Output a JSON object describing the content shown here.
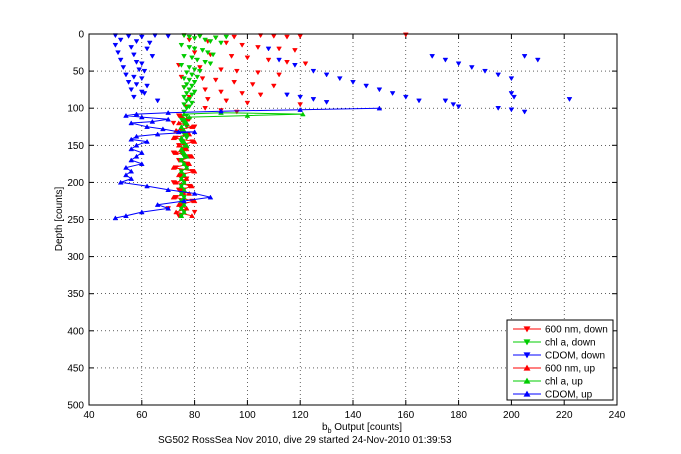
{
  "chart_data": {
    "type": "scatter",
    "xlabel_main": "b",
    "xlabel_sub": "b",
    "xlabel_rest": " Output [counts]",
    "ylabel": "Depth [counts]",
    "caption": "SG502 RossSea Nov 2010, dive 29 started 24-Nov-2010 01:39:53",
    "xlim": [
      40,
      240
    ],
    "ylim": [
      0,
      500
    ],
    "y_reversed": true,
    "grid": true,
    "legend_position": "bottom-right",
    "xticks": [
      40,
      60,
      80,
      100,
      120,
      140,
      160,
      180,
      200,
      220,
      240
    ],
    "yticks": [
      0,
      50,
      100,
      150,
      200,
      250,
      300,
      350,
      400,
      450,
      500
    ],
    "series": [
      {
        "name": "600 nm, down",
        "color": "#ff0000",
        "marker": "triangle-down",
        "line": false,
        "points": [
          [
            76,
            2
          ],
          [
            82,
            3
          ],
          [
            88,
            5
          ],
          [
            95,
            4
          ],
          [
            105,
            2
          ],
          [
            110,
            3
          ],
          [
            115,
            4
          ],
          [
            120,
            3
          ],
          [
            160,
            1
          ],
          [
            78,
            8
          ],
          [
            85,
            10
          ],
          [
            92,
            12
          ],
          [
            98,
            15
          ],
          [
            104,
            18
          ],
          [
            112,
            20
          ],
          [
            118,
            22
          ],
          [
            80,
            25
          ],
          [
            86,
            28
          ],
          [
            94,
            30
          ],
          [
            100,
            32
          ],
          [
            108,
            35
          ],
          [
            115,
            38
          ],
          [
            122,
            40
          ],
          [
            74,
            42
          ],
          [
            82,
            45
          ],
          [
            90,
            48
          ],
          [
            96,
            50
          ],
          [
            104,
            52
          ],
          [
            112,
            55
          ],
          [
            75,
            58
          ],
          [
            83,
            60
          ],
          [
            88,
            62
          ],
          [
            95,
            65
          ],
          [
            102,
            68
          ],
          [
            110,
            70
          ],
          [
            76,
            72
          ],
          [
            84,
            75
          ],
          [
            90,
            78
          ],
          [
            98,
            80
          ],
          [
            105,
            82
          ],
          [
            78,
            85
          ],
          [
            85,
            88
          ],
          [
            92,
            90
          ],
          [
            100,
            93
          ],
          [
            120,
            95
          ],
          [
            77,
            98
          ],
          [
            84,
            100
          ],
          [
            90,
            103
          ],
          [
            96,
            105
          ],
          [
            74,
            110
          ],
          [
            78,
            115
          ],
          [
            72,
            120
          ],
          [
            80,
            125
          ],
          [
            75,
            130
          ],
          [
            77,
            135
          ],
          [
            73,
            140
          ],
          [
            79,
            145
          ],
          [
            74,
            150
          ],
          [
            76,
            155
          ],
          [
            72,
            160
          ],
          [
            78,
            165
          ],
          [
            74,
            170
          ],
          [
            77,
            175
          ],
          [
            73,
            180
          ],
          [
            79,
            185
          ],
          [
            75,
            190
          ],
          [
            77,
            195
          ],
          [
            72,
            200
          ],
          [
            78,
            205
          ],
          [
            74,
            210
          ],
          [
            76,
            215
          ],
          [
            73,
            220
          ],
          [
            79,
            225
          ],
          [
            75,
            230
          ],
          [
            70,
            235
          ],
          [
            80,
            240
          ],
          [
            74,
            245
          ]
        ]
      },
      {
        "name": "chl a, down",
        "color": "#00cc00",
        "marker": "triangle-down",
        "line": false,
        "points": [
          [
            76,
            2
          ],
          [
            78,
            4
          ],
          [
            80,
            6
          ],
          [
            82,
            3
          ],
          [
            84,
            8
          ],
          [
            86,
            10
          ],
          [
            88,
            5
          ],
          [
            90,
            12
          ],
          [
            92,
            4
          ],
          [
            75,
            15
          ],
          [
            78,
            18
          ],
          [
            80,
            20
          ],
          [
            83,
            22
          ],
          [
            85,
            25
          ],
          [
            87,
            28
          ],
          [
            76,
            30
          ],
          [
            79,
            32
          ],
          [
            81,
            35
          ],
          [
            84,
            38
          ],
          [
            86,
            40
          ],
          [
            75,
            42
          ],
          [
            78,
            45
          ],
          [
            80,
            48
          ],
          [
            82,
            50
          ],
          [
            77,
            52
          ],
          [
            79,
            55
          ],
          [
            81,
            58
          ],
          [
            76,
            60
          ],
          [
            78,
            62
          ],
          [
            80,
            65
          ],
          [
            77,
            68
          ],
          [
            79,
            70
          ],
          [
            76,
            72
          ],
          [
            78,
            75
          ],
          [
            80,
            78
          ],
          [
            77,
            80
          ],
          [
            79,
            82
          ],
          [
            76,
            85
          ],
          [
            78,
            88
          ],
          [
            77,
            90
          ],
          [
            79,
            93
          ],
          [
            76,
            95
          ],
          [
            78,
            98
          ],
          [
            77,
            100
          ],
          [
            76,
            105
          ],
          [
            77,
            110
          ],
          [
            75,
            115
          ],
          [
            76,
            120
          ],
          [
            77,
            125
          ],
          [
            75,
            130
          ],
          [
            76,
            135
          ],
          [
            77,
            140
          ],
          [
            75,
            145
          ],
          [
            76,
            150
          ],
          [
            77,
            155
          ],
          [
            75,
            160
          ],
          [
            76,
            165
          ],
          [
            75,
            170
          ],
          [
            76,
            175
          ],
          [
            77,
            180
          ],
          [
            75,
            185
          ],
          [
            76,
            190
          ],
          [
            75,
            195
          ],
          [
            76,
            200
          ],
          [
            75,
            205
          ],
          [
            76,
            210
          ],
          [
            75,
            215
          ],
          [
            76,
            220
          ],
          [
            75,
            225
          ],
          [
            76,
            230
          ],
          [
            75,
            235
          ],
          [
            76,
            240
          ],
          [
            75,
            245
          ]
        ]
      },
      {
        "name": "CDOM, down",
        "color": "#0000ff",
        "marker": "triangle-down",
        "line": false,
        "points": [
          [
            50,
            2
          ],
          [
            55,
            3
          ],
          [
            60,
            4
          ],
          [
            65,
            2
          ],
          [
            70,
            3
          ],
          [
            52,
            8
          ],
          [
            58,
            10
          ],
          [
            63,
            12
          ],
          [
            50,
            15
          ],
          [
            56,
            18
          ],
          [
            62,
            20
          ],
          [
            51,
            25
          ],
          [
            57,
            28
          ],
          [
            64,
            30
          ],
          [
            52,
            35
          ],
          [
            58,
            38
          ],
          [
            60,
            40
          ],
          [
            53,
            45
          ],
          [
            59,
            48
          ],
          [
            61,
            50
          ],
          [
            54,
            55
          ],
          [
            57,
            58
          ],
          [
            60,
            60
          ],
          [
            55,
            65
          ],
          [
            58,
            68
          ],
          [
            62,
            70
          ],
          [
            56,
            75
          ],
          [
            60,
            78
          ],
          [
            61,
            80
          ],
          [
            57,
            85
          ],
          [
            66,
            90
          ],
          [
            108,
            20
          ],
          [
            112,
            35
          ],
          [
            118,
            42
          ],
          [
            125,
            50
          ],
          [
            130,
            55
          ],
          [
            135,
            60
          ],
          [
            140,
            65
          ],
          [
            145,
            70
          ],
          [
            150,
            75
          ],
          [
            155,
            80
          ],
          [
            160,
            85
          ],
          [
            165,
            90
          ],
          [
            170,
            30
          ],
          [
            175,
            35
          ],
          [
            180,
            40
          ],
          [
            185,
            45
          ],
          [
            190,
            50
          ],
          [
            195,
            55
          ],
          [
            200,
            60
          ],
          [
            205,
            30
          ],
          [
            210,
            35
          ],
          [
            200,
            80
          ],
          [
            201,
            85
          ],
          [
            222,
            88
          ],
          [
            175,
            90
          ],
          [
            178,
            95
          ],
          [
            180,
            98
          ],
          [
            130,
            92
          ],
          [
            125,
            88
          ],
          [
            120,
            85
          ],
          [
            115,
            82
          ],
          [
            195,
            100
          ],
          [
            200,
            102
          ],
          [
            205,
            105
          ]
        ]
      },
      {
        "name": "600 nm, up",
        "color": "#ff0000",
        "marker": "triangle-up",
        "line": true,
        "points": [
          [
            75,
            110
          ],
          [
            77,
            115
          ],
          [
            74,
            120
          ],
          [
            79,
            125
          ],
          [
            73,
            130
          ],
          [
            78,
            135
          ],
          [
            72,
            140
          ],
          [
            80,
            145
          ],
          [
            74,
            150
          ],
          [
            77,
            155
          ],
          [
            73,
            160
          ],
          [
            79,
            165
          ],
          [
            75,
            170
          ],
          [
            78,
            175
          ],
          [
            72,
            180
          ],
          [
            80,
            185
          ],
          [
            74,
            190
          ],
          [
            77,
            195
          ],
          [
            73,
            200
          ],
          [
            79,
            205
          ],
          [
            75,
            210
          ],
          [
            78,
            215
          ],
          [
            72,
            220
          ],
          [
            80,
            225
          ],
          [
            74,
            230
          ],
          [
            77,
            235
          ],
          [
            73,
            240
          ],
          [
            79,
            245
          ]
        ]
      },
      {
        "name": "chl a, up",
        "color": "#00cc00",
        "marker": "triangle-up",
        "line": true,
        "points": [
          [
            76,
            108
          ],
          [
            90,
            106
          ],
          [
            121,
            108
          ],
          [
            100,
            110
          ],
          [
            78,
            112
          ],
          [
            76,
            115
          ],
          [
            77,
            120
          ],
          [
            75,
            125
          ],
          [
            76,
            130
          ],
          [
            77,
            135
          ],
          [
            75,
            140
          ],
          [
            76,
            145
          ],
          [
            77,
            150
          ],
          [
            75,
            155
          ],
          [
            76,
            160
          ],
          [
            77,
            165
          ],
          [
            75,
            170
          ],
          [
            76,
            175
          ],
          [
            77,
            180
          ],
          [
            75,
            185
          ],
          [
            76,
            190
          ],
          [
            75,
            195
          ],
          [
            76,
            200
          ],
          [
            75,
            205
          ],
          [
            76,
            210
          ],
          [
            75,
            215
          ],
          [
            76,
            220
          ],
          [
            75,
            225
          ],
          [
            76,
            230
          ],
          [
            75,
            235
          ],
          [
            76,
            240
          ],
          [
            75,
            245
          ]
        ]
      },
      {
        "name": "CDOM, up",
        "color": "#0000ff",
        "marker": "triangle-up",
        "line": true,
        "points": [
          [
            150,
            100
          ],
          [
            120,
            102
          ],
          [
            90,
            104
          ],
          [
            70,
            106
          ],
          [
            58,
            108
          ],
          [
            54,
            110
          ],
          [
            60,
            112
          ],
          [
            70,
            115
          ],
          [
            64,
            118
          ],
          [
            56,
            120
          ],
          [
            62,
            125
          ],
          [
            68,
            128
          ],
          [
            74,
            132
          ],
          [
            80,
            132
          ],
          [
            66,
            135
          ],
          [
            58,
            138
          ],
          [
            56,
            142
          ],
          [
            62,
            145
          ],
          [
            58,
            150
          ],
          [
            56,
            155
          ],
          [
            60,
            160
          ],
          [
            58,
            165
          ],
          [
            56,
            170
          ],
          [
            60,
            175
          ],
          [
            54,
            180
          ],
          [
            56,
            185
          ],
          [
            54,
            190
          ],
          [
            56,
            195
          ],
          [
            52,
            200
          ],
          [
            62,
            205
          ],
          [
            70,
            210
          ],
          [
            80,
            215
          ],
          [
            86,
            220
          ],
          [
            76,
            225
          ],
          [
            66,
            230
          ],
          [
            70,
            235
          ],
          [
            60,
            240
          ],
          [
            54,
            245
          ],
          [
            50,
            248
          ]
        ]
      }
    ]
  }
}
